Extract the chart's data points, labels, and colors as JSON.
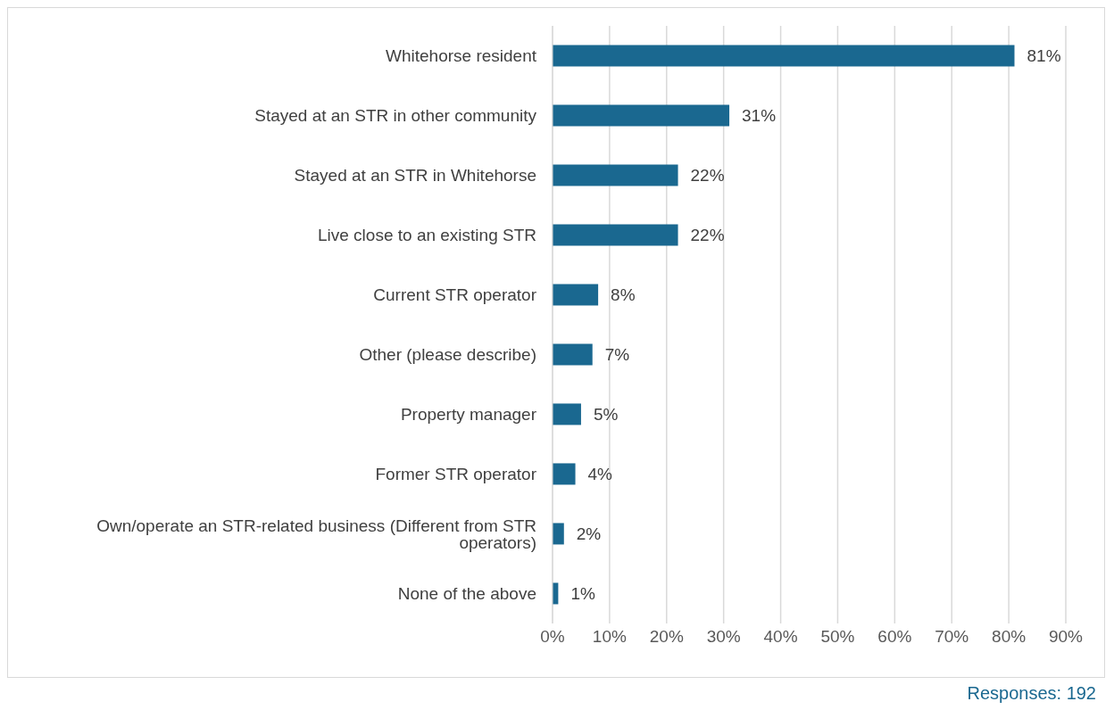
{
  "chart_data": {
    "type": "bar",
    "orientation": "horizontal",
    "categories": [
      "Whitehorse resident",
      "Stayed at an STR in other community",
      "Stayed at an STR in Whitehorse",
      "Live close to an existing STR",
      "Current STR operator",
      "Other (please describe)",
      "Property manager",
      "Former STR operator",
      "Own/operate an STR-related business (Different from STR operators)",
      "None of the above"
    ],
    "values": [
      81,
      31,
      22,
      22,
      8,
      7,
      5,
      4,
      2,
      1
    ],
    "value_labels": [
      "81%",
      "31%",
      "22%",
      "22%",
      "8%",
      "7%",
      "5%",
      "4%",
      "2%",
      "1%"
    ],
    "color": "#1a6890",
    "xlim": [
      0,
      90
    ],
    "xticks": [
      {
        "value": 0,
        "label": "0%"
      },
      {
        "value": 10,
        "label": "10%"
      },
      {
        "value": 20,
        "label": "20%"
      },
      {
        "value": 30,
        "label": "30%"
      },
      {
        "value": 40,
        "label": "40%"
      },
      {
        "value": 50,
        "label": "50%"
      },
      {
        "value": 60,
        "label": "60%"
      },
      {
        "value": 70,
        "label": "70%"
      },
      {
        "value": 80,
        "label": "80%"
      },
      {
        "value": 90,
        "label": "90%"
      }
    ],
    "grid": "x",
    "annotations": [
      "Responses: 192"
    ]
  }
}
